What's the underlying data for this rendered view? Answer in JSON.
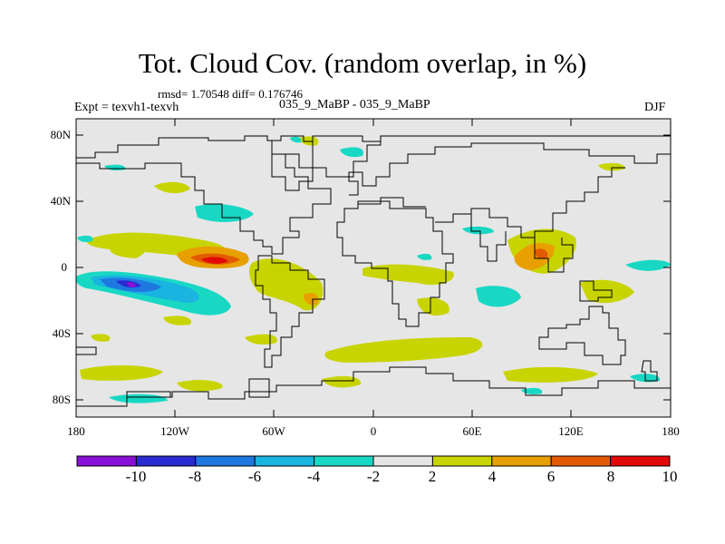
{
  "header": {
    "title": "Tot. Cloud Cov. (random overlap, in %)",
    "stats": "rmsd= 1.70548 diff= 0.176746",
    "experiment": "Expt = texvh1-texvh",
    "periods": "035_9_MaBP - 035_9_MaBP",
    "season": "DJF"
  },
  "axes": {
    "lat_labels": [
      "80N",
      "40N",
      "0",
      "40S",
      "80S"
    ],
    "lon_labels": [
      "180",
      "120W",
      "60W",
      "0",
      "60E",
      "120E",
      "180"
    ]
  },
  "colorbar": {
    "labels": [
      "-10",
      "-8",
      "-6",
      "-4",
      "-2",
      "2",
      "4",
      "6",
      "8",
      "10"
    ],
    "colors": [
      "#8a10d8",
      "#2a2ad2",
      "#1e78e0",
      "#19b4e0",
      "#18d8c4",
      "#e6e6e6",
      "#c8d400",
      "#e8a000",
      "#e25a00",
      "#e20808"
    ]
  },
  "colors": {
    "background_field": "#e6e6e6",
    "coastline": "#000000"
  }
}
